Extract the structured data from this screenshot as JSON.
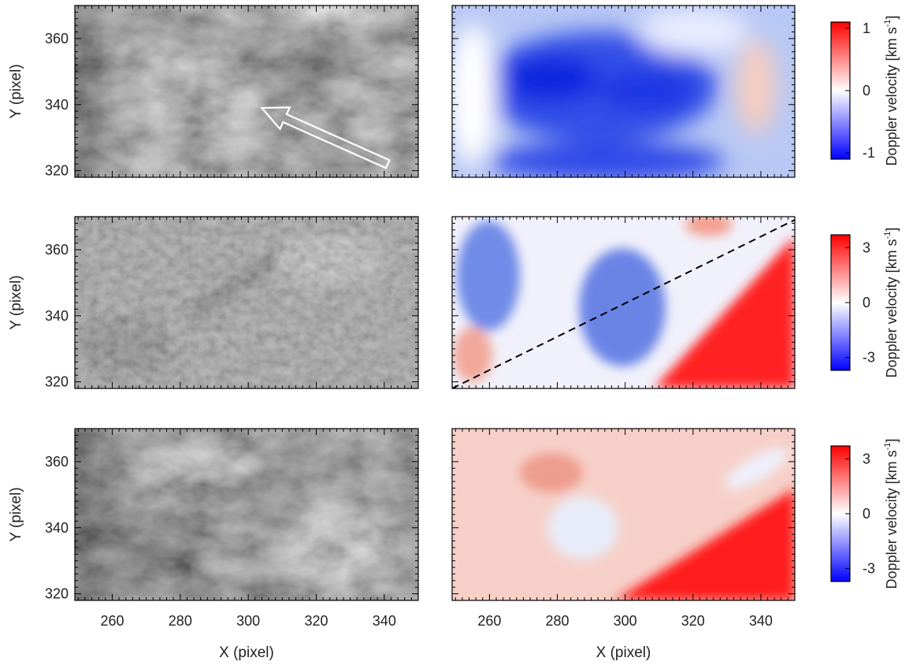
{
  "chart_data": {
    "type": "heatmap",
    "grid": false,
    "x_range": [
      249,
      350
    ],
    "y_range": [
      318,
      370
    ],
    "x_ticks": [
      260,
      280,
      300,
      320,
      340
    ],
    "y_ticks": [
      320,
      340,
      360
    ],
    "xlabel": "X (pixel)",
    "ylabel": "Y (pixel)",
    "rows": [
      {
        "intensity_map": {
          "colormap": "gray"
        },
        "velocity_map": {
          "colormap": "blue-white-red"
        },
        "colorbar": {
          "label": "Doppler velocity [km s",
          "label_sup": "-1",
          "label_end": "]",
          "range": [
            -1.1,
            1.1
          ],
          "ticks": [
            {
              "value": 1,
              "label": "1"
            },
            {
              "value": 0,
              "label": "0"
            },
            {
              "value": -1,
              "label": "-1"
            }
          ]
        },
        "annotation": {
          "type": "arrow",
          "tail": [
            341,
            322
          ],
          "head": [
            304,
            339
          ]
        }
      },
      {
        "intensity_map": {
          "colormap": "gray"
        },
        "velocity_map": {
          "colormap": "blue-white-red"
        },
        "colorbar": {
          "label": "Doppler velocity [km s",
          "label_sup": "-1",
          "label_end": "]",
          "range": [
            -3.7,
            3.7
          ],
          "ticks": [
            {
              "value": 3,
              "label": "3"
            },
            {
              "value": 0,
              "label": "0"
            },
            {
              "value": -3,
              "label": "-3"
            }
          ]
        },
        "annotation": {
          "type": "dashed-line",
          "from": [
            249,
            319
          ],
          "to": [
            350,
            369
          ]
        }
      },
      {
        "intensity_map": {
          "colormap": "gray"
        },
        "velocity_map": {
          "colormap": "blue-white-red"
        },
        "colorbar": {
          "label": "Doppler velocity [km s",
          "label_sup": "-1",
          "label_end": "]",
          "range": [
            -3.7,
            3.7
          ],
          "ticks": [
            {
              "value": 3,
              "label": "3"
            },
            {
              "value": 0,
              "label": "0"
            },
            {
              "value": -3,
              "label": "-3"
            }
          ]
        }
      }
    ]
  }
}
